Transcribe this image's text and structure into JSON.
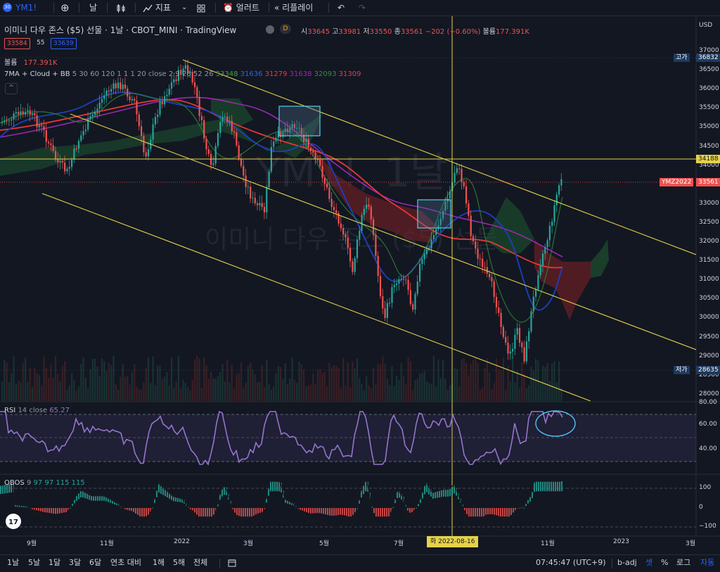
{
  "toolbar": {
    "symbol": "YM1!",
    "interval": "날",
    "indicators_label": "지표",
    "alert_label": "얼러트",
    "replay_label": "리플레이"
  },
  "header": {
    "title": "이미니 다우 존스 ($5) 선물 · 1날 · CBOT_MINI · TradingView",
    "badge": "D",
    "ohlc": {
      "open_label": "시",
      "open": "33645",
      "high_label": "고",
      "high": "33981",
      "low_label": "저",
      "low": "33550",
      "close_label": "종",
      "close": "33561",
      "change": "−202 (−0.60%)",
      "volume_label": "볼륨",
      "volume": "177.391K"
    },
    "sell_price": "33584",
    "spread": "55",
    "buy_price": "33639"
  },
  "legend": {
    "volume_label": "볼륨",
    "volume_value": "177.391K",
    "ma_label": "7MA + Cloud + BB",
    "ma_params": "5 30 60 120 1 1 1 20 close 2 9 26 52 26",
    "ma_values": [
      {
        "value": "33348",
        "color": "#3fa34d"
      },
      {
        "value": "31636",
        "color": "#2962ff"
      },
      {
        "value": "31279",
        "color": "#f23645"
      },
      {
        "value": "31638",
        "color": "#9c27b0"
      },
      {
        "value": "32093",
        "color": "#388e3c"
      },
      {
        "value": "31309",
        "color": "#f23645"
      }
    ]
  },
  "watermark": {
    "symbol": "YM1!, 1날",
    "name": "이미니 다우 존스 ($5) 선물"
  },
  "price_axis": {
    "currency": "USD",
    "ticks": [
      "37000",
      "36500",
      "36000",
      "35500",
      "35000",
      "34500",
      "34000",
      "33500",
      "33000",
      "32500",
      "32000",
      "31500",
      "31000",
      "30500",
      "30000",
      "29500",
      "29000",
      "28500",
      "28000"
    ],
    "high_label": "고가",
    "high_value": "36832",
    "crosshair_value": "34188",
    "last_label": "YMZ2022",
    "last_value": "33561",
    "low_label": "저가",
    "low_value": "28635"
  },
  "rsi": {
    "label": "RSI",
    "params": "14 close",
    "value": "65.27",
    "ticks": [
      "80.00",
      "60.00",
      "40.00"
    ]
  },
  "obos": {
    "label": "OBOS",
    "params": "9",
    "values": [
      "97",
      "97",
      "115",
      "115"
    ],
    "ticks": [
      "100",
      "0",
      "−100"
    ]
  },
  "time_axis": {
    "ticks": [
      "9월",
      "11월",
      "2022",
      "3월",
      "5월",
      "7월",
      "11월",
      "2023",
      "3월"
    ],
    "crosshair_date": "화 2022-08-16"
  },
  "bottom_bar": {
    "ranges": [
      "1날",
      "5날",
      "1달",
      "3달",
      "6달",
      "연초 대비",
      "1해",
      "5해",
      "전체"
    ],
    "clock": "07:45:47 (UTC+9)",
    "adj": "b-adj",
    "session": "셋",
    "percent": "%",
    "log": "로그",
    "auto": "자동"
  },
  "colors": {
    "background": "#131722",
    "up": "#26a69a",
    "down": "#ef5350",
    "channel": "#e5d24a",
    "rsi": "#9575cd"
  }
}
